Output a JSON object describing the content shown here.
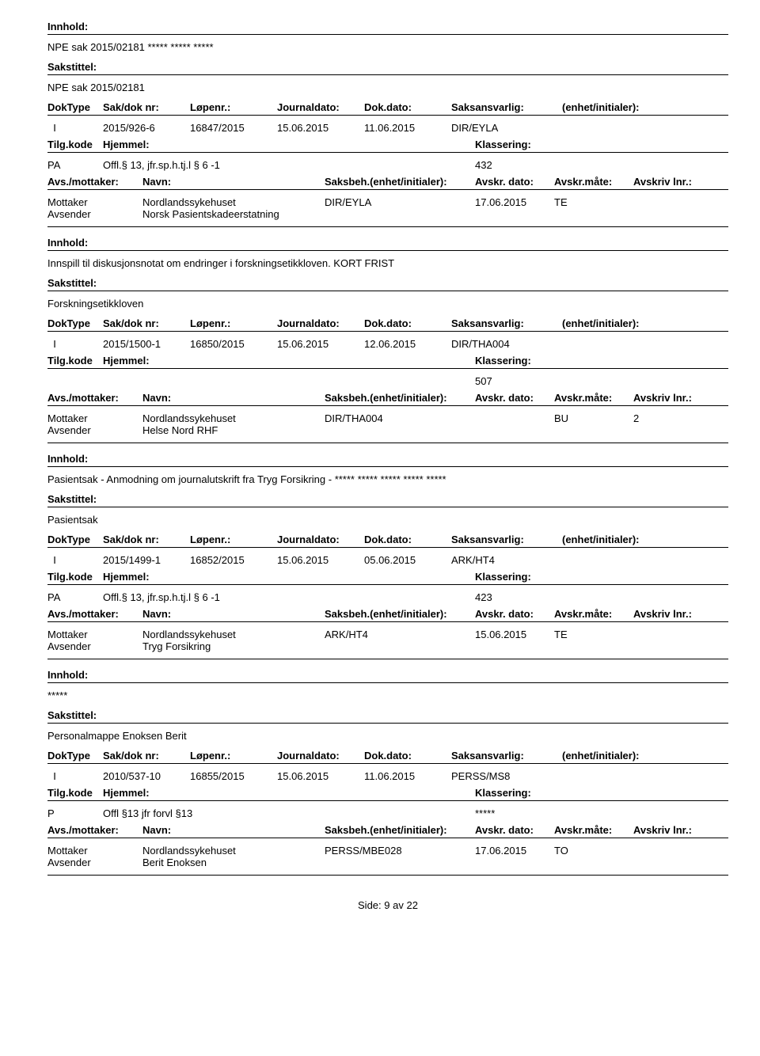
{
  "labels": {
    "innhold": "Innhold:",
    "sakstittel": "Sakstittel:",
    "doktype": "DokType",
    "sakdoknr": "Sak/dok nr:",
    "lopenr": "Løpenr.:",
    "journaldato": "Journaldato:",
    "dokdato": "Dok.dato:",
    "saksansvarlig": "Saksansvarlig:",
    "enhet": "(enhet/initialer):",
    "tilgkode": "Tilg.kode",
    "hjemmel": "Hjemmel:",
    "klassering": "Klassering:",
    "avsmottaker": "Avs./mottaker:",
    "navn": "Navn:",
    "saksbeh": "Saksbeh.(enhet/initialer):",
    "avskrdato": "Avskr. dato:",
    "avskrmate": "Avskr.måte:",
    "avskrivlnr": "Avskriv lnr.:",
    "mottaker": "Mottaker",
    "avsender": "Avsender"
  },
  "footer": {
    "prefix": "Side:",
    "current": "9",
    "sep": "av",
    "total": "22"
  },
  "records": [
    {
      "innhold": "NPE sak 2015/02181 ***** ***** *****",
      "sakstittel": "NPE sak 2015/02181",
      "doktype": "I",
      "sakdoknr": "2015/926-6",
      "lopenr": "16847/2015",
      "journaldato": "15.06.2015",
      "dokdato": "11.06.2015",
      "saksansvarlig": "DIR/EYLA",
      "enhet": "",
      "tilgkode": "PA",
      "hjemmel": "Offl.§ 13, jfr.sp.h.tj.l § 6 -1",
      "klassering": "432",
      "parties": [
        {
          "role": "Mottaker",
          "navn": "Nordlandssykehuset",
          "saksbeh": "DIR/EYLA",
          "avskrdato": "17.06.2015",
          "avskrmate": "TE",
          "avskrivlnr": ""
        },
        {
          "role": "Avsender",
          "navn": "Norsk Pasientskadeerstatning",
          "saksbeh": "",
          "avskrdato": "",
          "avskrmate": "",
          "avskrivlnr": ""
        }
      ]
    },
    {
      "innhold": "Innspill til diskusjonsnotat om endringer i forskningsetikkloven. KORT FRIST",
      "sakstittel": "Forskningsetikkloven",
      "doktype": "I",
      "sakdoknr": "2015/1500-1",
      "lopenr": "16850/2015",
      "journaldato": "15.06.2015",
      "dokdato": "12.06.2015",
      "saksansvarlig": "DIR/THA004",
      "enhet": "",
      "tilgkode": "",
      "hjemmel": "",
      "klassering": "507",
      "parties": [
        {
          "role": "Mottaker",
          "navn": "Nordlandssykehuset",
          "saksbeh": "DIR/THA004",
          "avskrdato": "",
          "avskrmate": "BU",
          "avskrivlnr": "2"
        },
        {
          "role": "Avsender",
          "navn": "Helse Nord RHF",
          "saksbeh": "",
          "avskrdato": "",
          "avskrmate": "",
          "avskrivlnr": ""
        }
      ]
    },
    {
      "innhold": "Pasientsak - Anmodning om journalutskrift fra Tryg Forsikring - ***** ***** ***** ***** *****",
      "sakstittel": "Pasientsak",
      "doktype": "I",
      "sakdoknr": "2015/1499-1",
      "lopenr": "16852/2015",
      "journaldato": "15.06.2015",
      "dokdato": "05.06.2015",
      "saksansvarlig": "ARK/HT4",
      "enhet": "",
      "tilgkode": "PA",
      "hjemmel": "Offl.§ 13, jfr.sp.h.tj.l § 6 -1",
      "klassering": "423",
      "parties": [
        {
          "role": "Mottaker",
          "navn": "Nordlandssykehuset",
          "saksbeh": "ARK/HT4",
          "avskrdato": "15.06.2015",
          "avskrmate": "TE",
          "avskrivlnr": ""
        },
        {
          "role": "Avsender",
          "navn": "Tryg Forsikring",
          "saksbeh": "",
          "avskrdato": "",
          "avskrmate": "",
          "avskrivlnr": ""
        }
      ]
    },
    {
      "innhold": "*****",
      "sakstittel": "Personalmappe Enoksen Berit",
      "doktype": "I",
      "sakdoknr": "2010/537-10",
      "lopenr": "16855/2015",
      "journaldato": "15.06.2015",
      "dokdato": "11.06.2015",
      "saksansvarlig": "PERSS/MS8",
      "enhet": "",
      "tilgkode": "P",
      "hjemmel": "Offl §13 jfr forvl §13",
      "klassering": "*****",
      "parties": [
        {
          "role": "Mottaker",
          "navn": "Nordlandssykehuset",
          "saksbeh": "PERSS/MBE028",
          "avskrdato": "17.06.2015",
          "avskrmate": "TO",
          "avskrivlnr": ""
        },
        {
          "role": "Avsender",
          "navn": "Berit Enoksen",
          "saksbeh": "",
          "avskrdato": "",
          "avskrmate": "",
          "avskrivlnr": ""
        }
      ]
    }
  ]
}
